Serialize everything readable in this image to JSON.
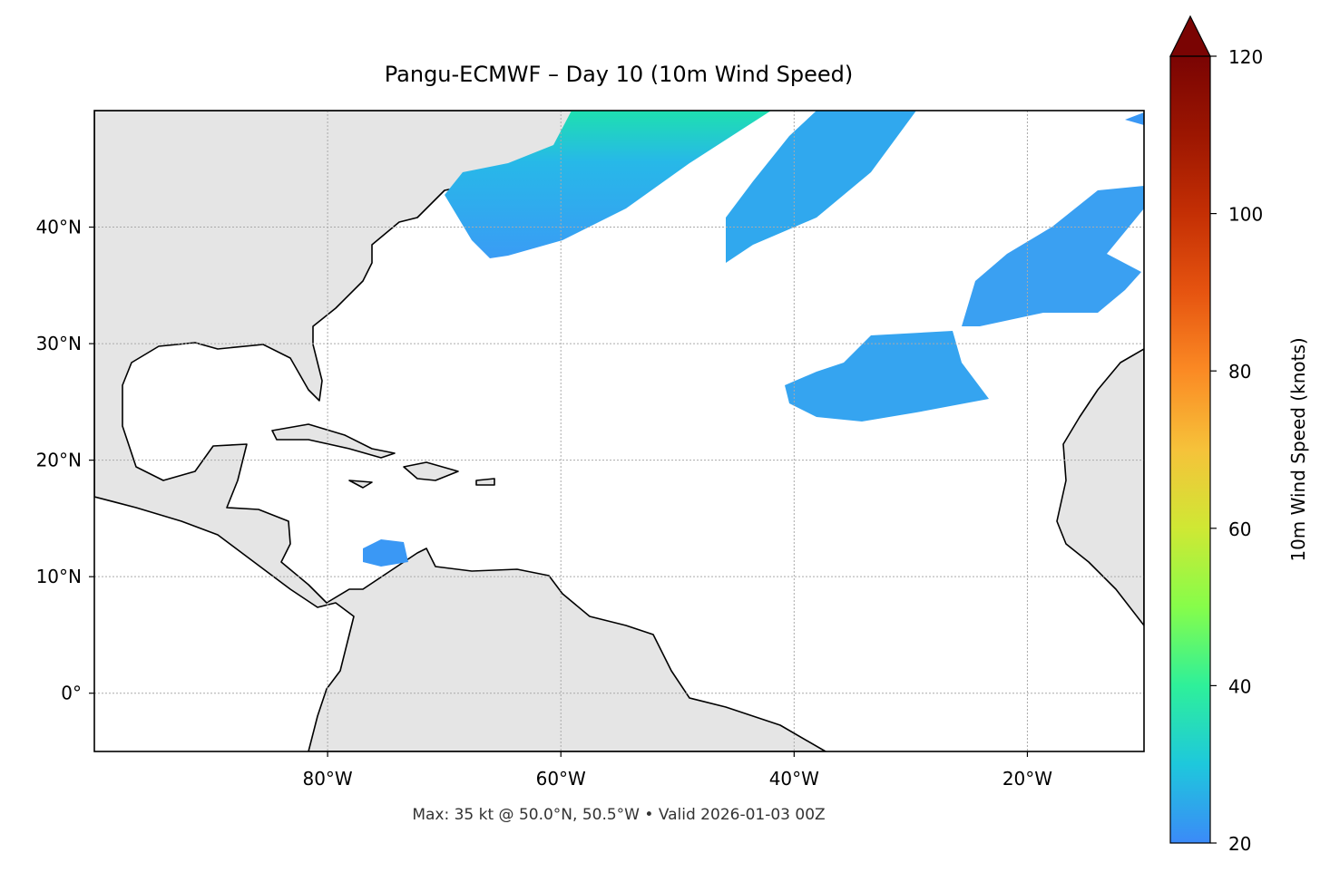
{
  "title": "Pangu-ECMWF – Day 10 (10m Wind Speed)",
  "footer": "Max: 35 kt @ 50.0°N, 50.5°W • Valid 2026-01-03 00Z",
  "map": {
    "xlim": [
      -100,
      -10
    ],
    "ylim": [
      -5,
      50
    ],
    "grid": true,
    "xticks": [
      {
        "value": -80,
        "label": "80°W"
      },
      {
        "value": -60,
        "label": "60°W"
      },
      {
        "value": -40,
        "label": "40°W"
      },
      {
        "value": -20,
        "label": "20°W"
      }
    ],
    "yticks": [
      {
        "value": 0,
        "label": "0°"
      },
      {
        "value": 10,
        "label": "10°N"
      },
      {
        "value": 20,
        "label": "20°N"
      },
      {
        "value": 30,
        "label": "30°N"
      },
      {
        "value": 40,
        "label": "40°N"
      }
    ]
  },
  "colorbar": {
    "label": "10m Wind Speed (knots)",
    "lim": [
      20,
      120
    ],
    "ticks": [
      20,
      40,
      60,
      80,
      100,
      120
    ]
  }
}
